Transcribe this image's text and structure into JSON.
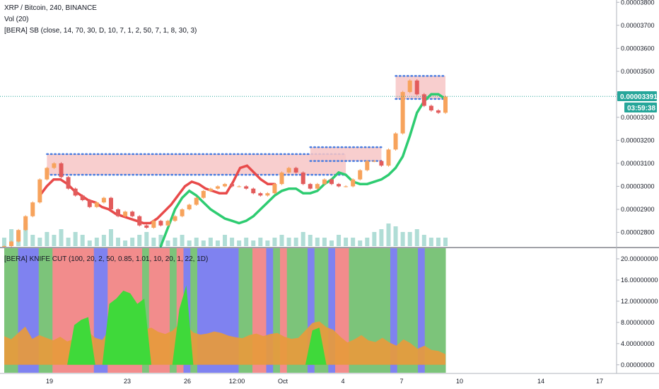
{
  "header": {
    "symbol_line": "XRP / Bitcoin, 240, BINANCE",
    "volume_line": "Vol (20)",
    "indicator_line": "[BERA] SB (close, 14, 70, 30, D, 10, 7, 1, 2, 50, 7, 1, 8, 30, 3)"
  },
  "lower_pane": {
    "indicator_line": "[BERA] KNIFE CUT (100, 20, 2, 50, 0.85, 1.01, 10, 20, 1, 22, 1D)"
  },
  "current_price": {
    "label": "0.00003391",
    "value": 3.391e-05,
    "countdown": "03:59:38"
  },
  "colors": {
    "up_candle": "#f7a35c",
    "down_candle": "#e25b5b",
    "ma_red": "#e84a4a",
    "ma_green": "#2ecc71",
    "box_fill": "#f7c6c6",
    "box_dots": "#4a7de0",
    "volume": "#8fcfc4",
    "zone_green": "#7cc47a",
    "zone_blue": "#7f82f0",
    "zone_red": "#f28c8c",
    "area_orange": "#e79a3c",
    "area_green": "#3fd93a",
    "price_tag": "#26a69a"
  },
  "chart_data": [
    {
      "type": "candlestick",
      "pair": "XRP / Bitcoin",
      "timeframe": "240",
      "exchange": "BINANCE",
      "y_ticks": [
        "0.00003800",
        "0.00003700",
        "0.00003600",
        "0.00003500",
        "0.00003400",
        "0.00003300",
        "0.00003200",
        "0.00003100",
        "0.00003000",
        "0.00002900",
        "0.00002800"
      ],
      "ylim": [
        2.74e-05,
        3.81e-05
      ],
      "x_ticks": [
        "19",
        "23",
        "26",
        "12:00",
        "Oct",
        "4",
        "7",
        "10",
        "14",
        "17"
      ],
      "closes": [
        2.74e-05,
        2.76e-05,
        2.81e-05,
        2.87e-05,
        2.93e-05,
        3.03e-05,
        3.08e-05,
        3.1e-05,
        3.04e-05,
        2.99e-05,
        2.96e-05,
        2.94e-05,
        2.91e-05,
        2.93e-05,
        2.95e-05,
        2.9e-05,
        2.87e-05,
        2.89e-05,
        2.87e-05,
        2.83e-05,
        2.82e-05,
        2.85e-05,
        2.83e-05,
        2.85e-05,
        2.87e-05,
        2.9e-05,
        2.92e-05,
        2.95e-05,
        2.98e-05,
        2.99e-05,
        3e-05,
        3.01e-05,
        3e-05,
        3e-05,
        2.99e-05,
        2.97e-05,
        2.96e-05,
        2.97e-05,
        3.01e-05,
        3.06e-05,
        3.08e-05,
        3.06e-05,
        3.01e-05,
        2.99e-05,
        3.01e-05,
        3.03e-05,
        3.01e-05,
        3e-05,
        3e-05,
        3.03e-05,
        3.07e-05,
        3.11e-05,
        3.11e-05,
        3.09e-05,
        3.16e-05,
        3.23e-05,
        3.41e-05,
        3.46e-05,
        3.4e-05,
        3.35e-05,
        3.33e-05,
        3.32e-05,
        3.39e-05
      ],
      "boxes": [
        {
          "from_index": 6,
          "to_index": 48,
          "top": 3.14e-05,
          "bottom": 3.05e-05
        },
        {
          "from_index": 43,
          "to_index": 53,
          "top": 3.17e-05,
          "bottom": 3.11e-05
        },
        {
          "from_index": 55,
          "to_index": 62,
          "top": 3.48e-05,
          "bottom": 3.38e-05
        }
      ],
      "red_ma": [
        2.96e-05,
        3e-05,
        3.03e-05,
        3.03e-05,
        3.01e-05,
        2.98e-05,
        2.96e-05,
        2.94e-05,
        2.93e-05,
        2.91e-05,
        2.9e-05,
        2.88e-05,
        2.87e-05,
        2.86e-05,
        2.85e-05,
        2.84e-05,
        2.84e-05,
        2.86e-05,
        2.89e-05,
        2.92e-05,
        2.96e-05,
        3e-05,
        3.02e-05,
        3.01e-05,
        2.99e-05,
        2.98e-05,
        2.97e-05,
        2.97e-05,
        3.02e-05,
        3.08e-05,
        3.09e-05,
        3.06e-05,
        3.03e-05,
        3.01e-05,
        3.01e-05
      ],
      "green_ma": [
        2.74e-05,
        2.82e-05,
        2.9e-05,
        2.95e-05,
        2.98e-05,
        2.96e-05,
        2.93e-05,
        2.9e-05,
        2.88e-05,
        2.86e-05,
        2.85e-05,
        2.84e-05,
        2.85e-05,
        2.87e-05,
        2.9e-05,
        2.93e-05,
        2.96e-05,
        2.98e-05,
        2.99e-05,
        2.99e-05,
        2.97e-05,
        2.97e-05,
        2.98e-05,
        3.01e-05,
        3.03e-05,
        3.06e-05,
        3.05e-05,
        3.02e-05,
        3.01e-05,
        3.01e-05,
        3.02e-05,
        3.03e-05,
        3.05e-05,
        3.08e-05,
        3.13e-05,
        3.22e-05,
        3.32e-05,
        3.37e-05,
        3.4e-05,
        3.4e-05,
        3.38e-05
      ],
      "volumes": [
        3,
        6,
        5,
        8,
        4,
        3,
        5,
        4,
        6,
        3,
        5,
        4,
        2,
        3,
        4,
        6,
        3,
        2,
        3,
        4,
        5,
        3,
        4,
        2,
        3,
        4,
        2,
        3,
        2,
        3,
        2,
        4,
        3,
        2,
        3,
        2,
        3,
        2,
        3,
        4,
        3,
        3,
        5,
        4,
        3,
        3,
        2,
        4,
        3,
        3,
        2,
        3,
        5,
        6,
        8,
        7,
        5,
        5,
        6,
        4,
        3,
        3,
        3
      ]
    },
    {
      "type": "area",
      "name": "[BERA] KNIFE CUT",
      "y_ticks": [
        "20.00000000",
        "16.00000000",
        "12.00000000",
        "8.00000000",
        "4.00000000",
        "0.00000000"
      ],
      "ylim": [
        -1.5,
        22
      ],
      "orange": [
        5.4,
        4.8,
        6.0,
        7.2,
        4.9,
        5.6,
        5.1,
        4.6,
        5.3,
        4.4,
        4.9,
        5.8,
        6.2,
        5.1,
        4.7,
        6.7,
        7.3,
        6.4,
        5.7,
        6.1,
        6.6,
        7.0,
        6.2,
        5.8,
        6.4,
        7.7,
        7.4,
        6.1,
        5.7,
        5.9,
        6.3,
        6.0,
        5.5,
        5.2,
        5.0,
        5.6,
        5.9,
        5.4,
        5.8,
        6.0,
        5.3,
        4.9,
        5.1,
        6.5,
        7.9,
        8.2,
        7.1,
        6.6,
        5.3,
        4.2,
        4.8,
        5.6,
        4.6,
        4.3,
        5.1,
        4.2,
        3.6,
        4.8,
        4.1,
        3.0,
        3.6,
        2.8,
        2.6,
        2.0
      ],
      "green": [
        0,
        0,
        0,
        0,
        0,
        0,
        0,
        0,
        0,
        0,
        7.5,
        8.5,
        9.0,
        0,
        0,
        11.5,
        12.5,
        14.0,
        13.5,
        11.5,
        12.5,
        0,
        0,
        0,
        0,
        10.5,
        15.0,
        0,
        0,
        0,
        0,
        0,
        0,
        0,
        0,
        0,
        0,
        0,
        0,
        0,
        0,
        0,
        0,
        0,
        6.5,
        7.0,
        0,
        0,
        0,
        0,
        0,
        0,
        0,
        0,
        0,
        0,
        0,
        0,
        0,
        0,
        0,
        0,
        0,
        0
      ],
      "zones": [
        "green",
        "green",
        "blue",
        "blue",
        "blue",
        "green",
        "green",
        "red",
        "red",
        "red",
        "red",
        "red",
        "red",
        "blue",
        "blue",
        "red",
        "red",
        "red",
        "red",
        "red",
        "green",
        "red",
        "red",
        "red",
        "green",
        "red",
        "blue",
        "green",
        "blue",
        "blue",
        "blue",
        "blue",
        "blue",
        "blue",
        "green",
        "green",
        "red",
        "red",
        "blue",
        "green",
        "red",
        "green",
        "green",
        "green",
        "blue",
        "green",
        "green",
        "blue",
        "red",
        "red",
        "green",
        "green",
        "green",
        "green",
        "green",
        "green",
        "blue",
        "green",
        "green",
        "green",
        "blue",
        "green",
        "green",
        "green"
      ]
    }
  ]
}
